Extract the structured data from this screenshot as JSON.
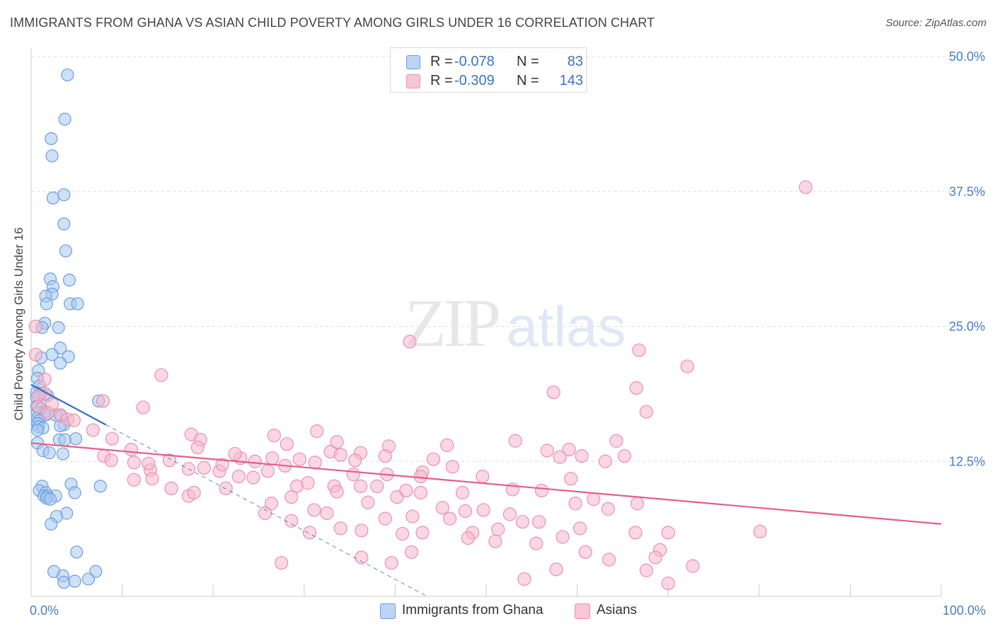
{
  "title": "IMMIGRANTS FROM GHANA VS ASIAN CHILD POVERTY AMONG GIRLS UNDER 16 CORRELATION CHART",
  "source": "Source: ZipAtlas.com",
  "watermark": {
    "zip": "ZIP",
    "atlas": "atlas"
  },
  "legend": {
    "rows": [
      {
        "r_label": "R =",
        "r_value": "-0.078",
        "n_label": "N =",
        "n_value": "83"
      },
      {
        "r_label": "R =",
        "r_value": "-0.309",
        "n_label": "N =",
        "n_value": "143"
      }
    ]
  },
  "bottom_legend": [
    {
      "label": "Immigrants from Ghana"
    },
    {
      "label": "Asians"
    }
  ],
  "colors": {
    "ghana_fill": "#a8c8f0",
    "ghana_stroke": "#6a9ee0",
    "ghana_line": "#2f6fc9",
    "asian_fill": "#f6b8cc",
    "asian_stroke": "#ec8fac",
    "asian_line": "#e45d8c",
    "tick_text": "#4a7cc9",
    "grid": "#dcdcdc"
  },
  "chart_data": {
    "type": "scatter",
    "title": "IMMIGRANTS FROM GHANA VS ASIAN CHILD POVERTY AMONG GIRLS UNDER 16 CORRELATION CHART",
    "xlabel": "",
    "ylabel": "Child Poverty Among Girls Under 16",
    "xlim": [
      0,
      100
    ],
    "ylim": [
      0,
      50
    ],
    "x_tick_labels": [
      "0.0%",
      "100.0%"
    ],
    "y_ticks": [
      12.5,
      25.0,
      37.5,
      50.0
    ],
    "y_tick_labels": [
      "12.5%",
      "25.0%",
      "37.5%",
      "50.0%"
    ],
    "grid": true,
    "series": [
      {
        "name": "Immigrants from Ghana",
        "r": -0.078,
        "n": 83,
        "trend": {
          "x0": 0,
          "y0": 19.6,
          "x1": 8.2,
          "y1": 15.9,
          "dashed_to_x": 43.5,
          "dashed_to_y": 0
        },
        "points": [
          [
            4.0,
            48.3
          ],
          [
            3.7,
            44.2
          ],
          [
            2.2,
            42.4
          ],
          [
            2.3,
            40.8
          ],
          [
            3.6,
            37.2
          ],
          [
            2.4,
            36.9
          ],
          [
            3.6,
            34.5
          ],
          [
            3.8,
            32.0
          ],
          [
            2.1,
            29.4
          ],
          [
            4.2,
            29.3
          ],
          [
            2.4,
            28.7
          ],
          [
            2.3,
            28.0
          ],
          [
            1.6,
            27.8
          ],
          [
            1.7,
            27.1
          ],
          [
            4.3,
            27.1
          ],
          [
            5.1,
            27.1
          ],
          [
            1.5,
            25.3
          ],
          [
            1.2,
            24.9
          ],
          [
            3.0,
            24.9
          ],
          [
            3.2,
            23.0
          ],
          [
            2.3,
            22.4
          ],
          [
            4.1,
            22.2
          ],
          [
            1.1,
            22.1
          ],
          [
            3.2,
            21.6
          ],
          [
            0.8,
            20.9
          ],
          [
            0.7,
            20.2
          ],
          [
            0.9,
            19.5
          ],
          [
            0.6,
            18.9
          ],
          [
            1.1,
            18.8
          ],
          [
            1.8,
            18.6
          ],
          [
            0.6,
            18.4
          ],
          [
            7.4,
            18.1
          ],
          [
            0.6,
            17.6
          ],
          [
            1.1,
            17.4
          ],
          [
            1.5,
            17.1
          ],
          [
            0.7,
            17.0
          ],
          [
            1.6,
            16.8
          ],
          [
            2.7,
            16.8
          ],
          [
            3.3,
            16.7
          ],
          [
            0.7,
            16.5
          ],
          [
            0.9,
            16.3
          ],
          [
            0.7,
            16.0
          ],
          [
            3.6,
            15.9
          ],
          [
            3.2,
            15.8
          ],
          [
            0.8,
            15.7
          ],
          [
            1.3,
            15.6
          ],
          [
            0.7,
            15.4
          ],
          [
            4.9,
            14.6
          ],
          [
            3.1,
            14.5
          ],
          [
            3.7,
            14.5
          ],
          [
            0.7,
            14.2
          ],
          [
            1.3,
            13.5
          ],
          [
            2.0,
            13.3
          ],
          [
            3.5,
            13.2
          ],
          [
            7.6,
            10.2
          ],
          [
            4.4,
            10.4
          ],
          [
            1.2,
            10.2
          ],
          [
            0.9,
            9.8
          ],
          [
            1.6,
            9.6
          ],
          [
            4.8,
            9.6
          ],
          [
            1.4,
            9.3
          ],
          [
            1.8,
            9.3
          ],
          [
            2.7,
            9.3
          ],
          [
            1.7,
            9.1
          ],
          [
            2.1,
            9.0
          ],
          [
            3.9,
            7.7
          ],
          [
            2.8,
            7.4
          ],
          [
            2.2,
            6.7
          ],
          [
            5.0,
            4.1
          ],
          [
            2.5,
            2.3
          ],
          [
            7.1,
            2.3
          ],
          [
            3.5,
            1.9
          ],
          [
            6.3,
            1.6
          ],
          [
            3.6,
            1.3
          ],
          [
            4.8,
            1.4
          ]
        ]
      },
      {
        "name": "Asians",
        "r": -0.309,
        "n": 143,
        "trend": {
          "x0": 0,
          "y0": 14.2,
          "x1": 100,
          "y1": 6.7
        },
        "points": [
          [
            85.1,
            37.9
          ],
          [
            0.5,
            25.0
          ],
          [
            41.6,
            23.6
          ],
          [
            66.8,
            22.8
          ],
          [
            0.5,
            22.4
          ],
          [
            72.1,
            21.3
          ],
          [
            14.3,
            20.5
          ],
          [
            1.5,
            20.1
          ],
          [
            66.5,
            19.3
          ],
          [
            57.4,
            18.9
          ],
          [
            1.5,
            18.8
          ],
          [
            0.8,
            18.6
          ],
          [
            7.9,
            18.1
          ],
          [
            2.3,
            17.8
          ],
          [
            0.8,
            17.6
          ],
          [
            12.3,
            17.5
          ],
          [
            67.6,
            17.1
          ],
          [
            1.8,
            17.0
          ],
          [
            3.2,
            16.8
          ],
          [
            4.0,
            16.4
          ],
          [
            4.7,
            16.3
          ],
          [
            6.8,
            15.4
          ],
          [
            31.4,
            15.3
          ],
          [
            17.6,
            15.0
          ],
          [
            8.9,
            14.6
          ],
          [
            18.6,
            14.5
          ],
          [
            28.1,
            14.1
          ],
          [
            45.7,
            14.0
          ],
          [
            39.3,
            13.9
          ],
          [
            59.1,
            13.6
          ],
          [
            32.9,
            13.4
          ],
          [
            36.2,
            13.3
          ],
          [
            8.0,
            13.0
          ],
          [
            38.9,
            13.0
          ],
          [
            60.5,
            13.0
          ],
          [
            65.2,
            13.0
          ],
          [
            64.3,
            14.4
          ],
          [
            23.0,
            12.8
          ],
          [
            26.5,
            12.8
          ],
          [
            24.6,
            12.5
          ],
          [
            35.6,
            12.6
          ],
          [
            31.2,
            12.4
          ],
          [
            63.1,
            12.5
          ],
          [
            8.8,
            12.6
          ],
          [
            11.3,
            12.4
          ],
          [
            17.3,
            11.8
          ],
          [
            13.1,
            11.7
          ],
          [
            12.9,
            12.3
          ],
          [
            19.0,
            11.9
          ],
          [
            26.0,
            11.6
          ],
          [
            20.7,
            11.6
          ],
          [
            43.0,
            11.5
          ],
          [
            39.1,
            11.3
          ],
          [
            42.8,
            11.1
          ],
          [
            49.6,
            11.1
          ],
          [
            11.3,
            10.8
          ],
          [
            59.3,
            10.9
          ],
          [
            36.2,
            10.2
          ],
          [
            29.2,
            10.2
          ],
          [
            33.3,
            10.2
          ],
          [
            15.4,
            10.0
          ],
          [
            21.4,
            10.0
          ],
          [
            42.8,
            9.6
          ],
          [
            52.9,
            9.9
          ],
          [
            56.1,
            9.8
          ],
          [
            47.4,
            9.6
          ],
          [
            28.6,
            9.2
          ],
          [
            40.2,
            9.2
          ],
          [
            61.8,
            9.0
          ],
          [
            17.3,
            9.3
          ],
          [
            26.4,
            8.6
          ],
          [
            37.0,
            8.7
          ],
          [
            59.8,
            8.6
          ],
          [
            66.6,
            8.6
          ],
          [
            47.7,
            7.9
          ],
          [
            32.5,
            7.7
          ],
          [
            25.7,
            7.7
          ],
          [
            52.6,
            7.6
          ],
          [
            41.9,
            7.4
          ],
          [
            46.0,
            7.2
          ],
          [
            28.6,
            7.0
          ],
          [
            38.9,
            7.2
          ],
          [
            54.0,
            6.9
          ],
          [
            55.8,
            6.9
          ],
          [
            34.0,
            6.3
          ],
          [
            30.6,
            5.9
          ],
          [
            51.3,
            6.2
          ],
          [
            40.8,
            5.8
          ],
          [
            36.3,
            6.1
          ],
          [
            48.5,
            5.9
          ],
          [
            48.0,
            5.4
          ],
          [
            58.4,
            5.5
          ],
          [
            51.0,
            5.1
          ],
          [
            66.4,
            5.9
          ],
          [
            55.5,
            4.9
          ],
          [
            70.0,
            5.9
          ],
          [
            41.8,
            4.1
          ],
          [
            60.9,
            4.1
          ],
          [
            80.1,
            6.0
          ],
          [
            69.1,
            4.3
          ],
          [
            68.6,
            3.6
          ],
          [
            63.5,
            3.4
          ],
          [
            36.3,
            3.6
          ],
          [
            39.6,
            3.1
          ],
          [
            27.5,
            3.1
          ],
          [
            72.7,
            2.8
          ],
          [
            67.6,
            2.4
          ],
          [
            57.7,
            2.5
          ],
          [
            54.2,
            1.6
          ],
          [
            70.0,
            1.2
          ],
          [
            33.6,
            14.3
          ],
          [
            26.7,
            14.9
          ],
          [
            34.0,
            13.1
          ],
          [
            35.4,
            11.3
          ],
          [
            44.2,
            12.7
          ],
          [
            21.0,
            12.2
          ],
          [
            22.8,
            11.1
          ],
          [
            18.3,
            13.8
          ],
          [
            24.4,
            11.0
          ],
          [
            30.4,
            10.5
          ],
          [
            45.2,
            8.2
          ],
          [
            27.9,
            12.1
          ],
          [
            17.9,
            9.6
          ],
          [
            31.1,
            8.0
          ],
          [
            43.0,
            5.9
          ],
          [
            38.0,
            10.2
          ],
          [
            33.6,
            9.7
          ],
          [
            49.7,
            8.0
          ],
          [
            15.2,
            12.6
          ],
          [
            58.1,
            12.9
          ],
          [
            60.3,
            6.3
          ],
          [
            53.2,
            14.4
          ],
          [
            46.3,
            12.0
          ],
          [
            63.4,
            8.1
          ],
          [
            56.7,
            13.5
          ],
          [
            22.4,
            13.2
          ],
          [
            29.5,
            12.7
          ],
          [
            11.0,
            13.6
          ],
          [
            13.3,
            10.9
          ],
          [
            41.2,
            9.8
          ]
        ]
      }
    ]
  }
}
